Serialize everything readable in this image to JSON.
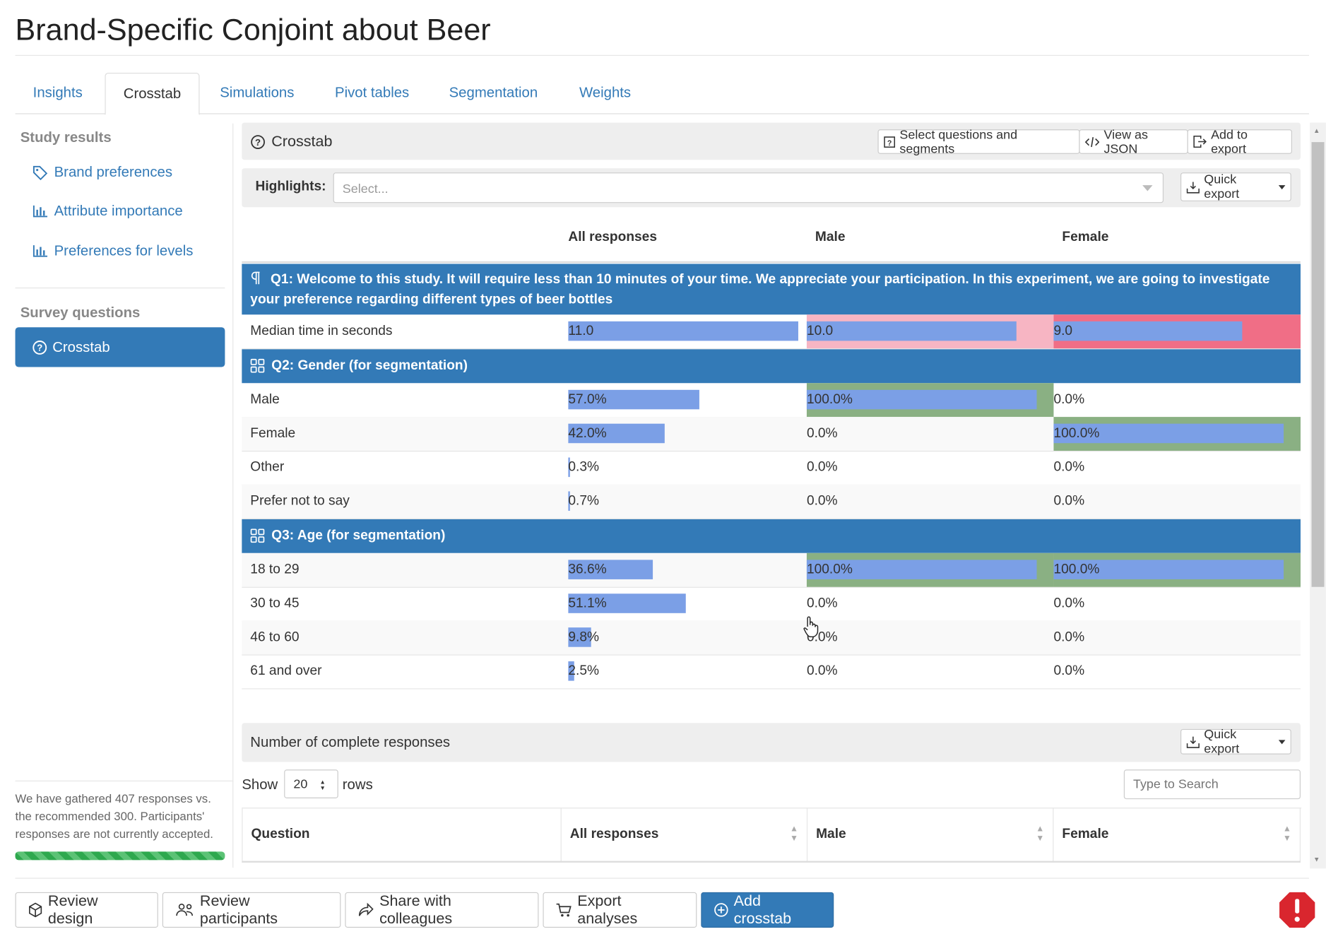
{
  "title": "Brand-Specific Conjoint about Beer",
  "tabs": [
    {
      "label": "Insights"
    },
    {
      "label": "Crosstab"
    },
    {
      "label": "Simulations"
    },
    {
      "label": "Pivot tables"
    },
    {
      "label": "Segmentation"
    },
    {
      "label": "Weights"
    }
  ],
  "sidebar": {
    "study_results_heading": "Study results",
    "links": [
      {
        "label": "Brand preferences",
        "icon": "tags-icon"
      },
      {
        "label": "Attribute importance",
        "icon": "bar-chart-icon"
      },
      {
        "label": "Preferences for levels",
        "icon": "bar-chart-icon"
      }
    ],
    "survey_questions_heading": "Survey questions",
    "active_item": "Crosstab",
    "status_text": "We have gathered 407 responses vs. the recommended 300. Participants' responses are not currently accepted.",
    "progress": 1.0
  },
  "panel": {
    "title": "Crosstab",
    "buttons": {
      "select": "Select questions and segments",
      "json": "View as JSON",
      "export": "Add to export"
    },
    "highlights_label": "Highlights:",
    "highlights_placeholder": "Select...",
    "quick_export": "Quick export"
  },
  "columns": [
    "All responses",
    "Male",
    "Female"
  ],
  "questions": [
    {
      "title": "Q1: Welcome to this study. It will require less than 10 minutes of your time. We appreciate your participation. In this experiment, we are going to investigate your preference regarding different types of beer bottles",
      "icon": "paragraph-icon",
      "rows": [
        {
          "label": "Median time in seconds",
          "values": [
            "11.0",
            "10.0",
            "9.0"
          ],
          "fills": [
            1.0,
            0.91,
            0.82
          ],
          "bg": [
            "",
            "#f7b5c3",
            "#f06e86"
          ]
        }
      ]
    },
    {
      "title": "Q2: Gender (for segmentation)",
      "icon": "grid-icon",
      "rows": [
        {
          "label": "Male",
          "values": [
            "57.0%",
            "100.0%",
            "0.0%"
          ],
          "fills": [
            0.57,
            1.0,
            0
          ],
          "bg": [
            "",
            "#8ab083",
            ""
          ]
        },
        {
          "label": "Female",
          "values": [
            "42.0%",
            "0.0%",
            "100.0%"
          ],
          "fills": [
            0.42,
            0,
            1.0
          ],
          "bg": [
            "",
            "",
            "#8ab083"
          ]
        },
        {
          "label": "Other",
          "values": [
            "0.3%",
            "0.0%",
            "0.0%"
          ],
          "fills": [
            0.003,
            0,
            0
          ],
          "bg": [
            "",
            "",
            ""
          ]
        },
        {
          "label": "Prefer not to say",
          "values": [
            "0.7%",
            "0.0%",
            "0.0%"
          ],
          "fills": [
            0.007,
            0,
            0
          ],
          "bg": [
            "",
            "",
            ""
          ]
        }
      ]
    },
    {
      "title": "Q3: Age (for segmentation)",
      "icon": "grid-icon",
      "rows": [
        {
          "label": "18 to 29",
          "values": [
            "36.6%",
            "100.0%",
            "100.0%"
          ],
          "fills": [
            0.366,
            1.0,
            1.0
          ],
          "bg": [
            "",
            "#8ab083",
            "#8ab083"
          ]
        },
        {
          "label": "30 to 45",
          "values": [
            "51.1%",
            "0.0%",
            "0.0%"
          ],
          "fills": [
            0.511,
            0,
            0
          ],
          "bg": [
            "",
            "",
            ""
          ]
        },
        {
          "label": "46 to 60",
          "values": [
            "9.8%",
            "0.0%",
            "0.0%"
          ],
          "fills": [
            0.098,
            0,
            0
          ],
          "bg": [
            "",
            "",
            ""
          ]
        },
        {
          "label": "61 and over",
          "values": [
            "2.5%",
            "0.0%",
            "0.0%"
          ],
          "fills": [
            0.025,
            0,
            0
          ],
          "bg": [
            "",
            "",
            ""
          ]
        }
      ]
    }
  ],
  "responses_panel": {
    "title": "Number of complete responses",
    "quick_export": "Quick export",
    "show_label": "Show",
    "rows_value": "20",
    "rows_label": "rows",
    "search_placeholder": "Type to Search",
    "headers": [
      "Question",
      "All responses",
      "Male",
      "Female"
    ]
  },
  "footer": {
    "review_design": "Review design",
    "review_participants": "Review participants",
    "share": "Share with colleagues",
    "export": "Export analyses",
    "add_crosstab": "Add crosstab"
  },
  "colors": {
    "primary": "#337ab7",
    "bar": "#7b9fe6",
    "alert": "#d9262e"
  }
}
